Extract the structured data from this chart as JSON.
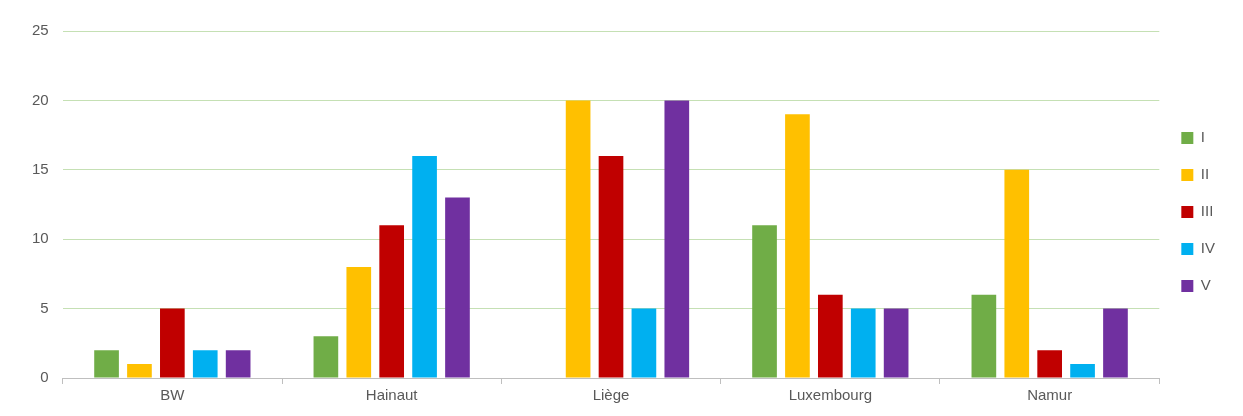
{
  "chart_data": {
    "type": "bar",
    "categories": [
      "BW",
      "Hainaut",
      "Liège",
      "Luxembourg",
      "Namur"
    ],
    "series": [
      {
        "name": "I",
        "color": "#70ad47",
        "values": [
          2,
          3,
          0,
          11,
          6
        ]
      },
      {
        "name": "II",
        "color": "#ffc000",
        "values": [
          1,
          8,
          20,
          19,
          15
        ]
      },
      {
        "name": "III",
        "color": "#c00000",
        "values": [
          5,
          11,
          16,
          6,
          2
        ]
      },
      {
        "name": "IV",
        "color": "#00b0f0",
        "values": [
          2,
          16,
          5,
          5,
          1
        ]
      },
      {
        "name": "V",
        "color": "#7030a0",
        "values": [
          2,
          13,
          20,
          5,
          5
        ]
      }
    ],
    "ylim": [
      0,
      25
    ],
    "yticks": [
      0,
      5,
      10,
      15,
      20,
      25
    ],
    "grid": "y",
    "legend": "right"
  }
}
